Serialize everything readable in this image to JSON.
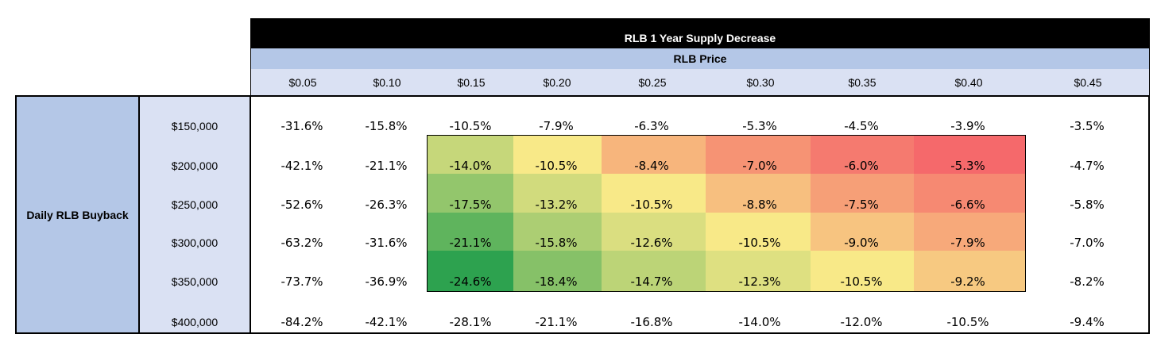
{
  "table": {
    "title": "RLB 1 Year Supply Decrease",
    "column_header": "RLB Price",
    "row_header": "Daily RLB Buyback"
  },
  "chart_data": {
    "type": "heatmap",
    "title": "RLB 1 Year Supply Decrease",
    "xlabel": "RLB Price",
    "ylabel": "Daily RLB Buyback",
    "x": [
      "$0.05",
      "$0.10",
      "$0.15",
      "$0.20",
      "$0.25",
      "$0.30",
      "$0.35",
      "$0.40",
      "$0.45"
    ],
    "y": [
      "$150,000",
      "$200,000",
      "$250,000",
      "$300,000",
      "$350,000",
      "$400,000"
    ],
    "cells": [
      [
        "-31.6%",
        "-15.8%",
        "-10.5%",
        "-7.9%",
        "-6.3%",
        "-5.3%",
        "-4.5%",
        "-3.9%",
        "-3.5%"
      ],
      [
        "-42.1%",
        "-21.1%",
        "-14.0%",
        "-10.5%",
        "-8.4%",
        "-7.0%",
        "-6.0%",
        "-5.3%",
        "-4.7%"
      ],
      [
        "-52.6%",
        "-26.3%",
        "-17.5%",
        "-13.2%",
        "-10.5%",
        "-8.8%",
        "-7.5%",
        "-6.6%",
        "-5.8%"
      ],
      [
        "-63.2%",
        "-31.6%",
        "-21.1%",
        "-15.8%",
        "-12.6%",
        "-10.5%",
        "-9.0%",
        "-7.9%",
        "-7.0%"
      ],
      [
        "-73.7%",
        "-36.9%",
        "-24.6%",
        "-18.4%",
        "-14.7%",
        "-12.3%",
        "-10.5%",
        "-9.2%",
        "-8.2%"
      ],
      [
        "-84.2%",
        "-42.1%",
        "-28.1%",
        "-21.1%",
        "-16.8%",
        "-14.0%",
        "-12.0%",
        "-10.5%",
        "-9.4%"
      ]
    ],
    "highlighted_rows": [
      "$200,000",
      "$250,000",
      "$300,000",
      "$350,000"
    ],
    "highlighted_columns": [
      "$0.15",
      "$0.20",
      "$0.25",
      "$0.30",
      "$0.35",
      "$0.40"
    ],
    "color_scale": {
      "low": "#2da24f",
      "mid": "#f8e988",
      "high": "#f5696b"
    }
  }
}
